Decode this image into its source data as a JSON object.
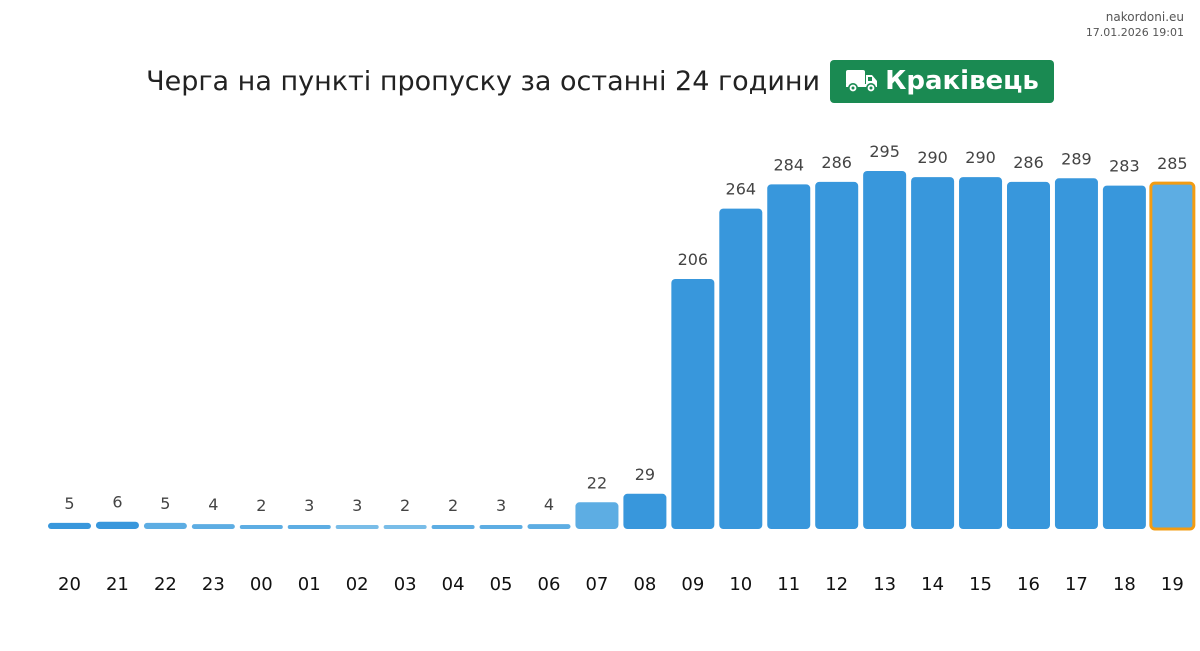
{
  "meta": {
    "site": "nakordoni.eu",
    "timestamp": "17.01.2026 19:01"
  },
  "header": {
    "title": "Черга на пункті пропуску за останні 24 години",
    "checkpoint": "Краківець",
    "checkpoint_icon": "truck-icon",
    "badge_color": "#1a8a52"
  },
  "colors": {
    "bar": "#3897dc",
    "bar_light": "#5dade3",
    "bar_lighter": "#79bde8",
    "highlight_border": "#f39c12",
    "value_label": "#444444",
    "tick_label": "#111111"
  },
  "chart_data": {
    "type": "bar",
    "title": "Черга на пункті пропуску за останні 24 години",
    "xlabel": "",
    "ylabel": "",
    "categories": [
      "20",
      "21",
      "22",
      "23",
      "00",
      "01",
      "02",
      "03",
      "04",
      "05",
      "06",
      "07",
      "08",
      "09",
      "10",
      "11",
      "12",
      "13",
      "14",
      "15",
      "16",
      "17",
      "18",
      "19"
    ],
    "values": [
      5,
      6,
      5,
      4,
      2,
      3,
      3,
      2,
      2,
      3,
      4,
      22,
      29,
      206,
      264,
      284,
      286,
      295,
      290,
      290,
      286,
      289,
      283,
      285
    ],
    "shade": [
      "base",
      "base",
      "light",
      "light",
      "light",
      "light",
      "lighter",
      "lighter",
      "light",
      "light",
      "light",
      "light",
      "base",
      "base",
      "base",
      "base",
      "base",
      "base",
      "base",
      "base",
      "base",
      "base",
      "base",
      "light"
    ],
    "highlight_index": 23,
    "ylim": [
      0,
      295
    ],
    "grid": false,
    "legend": "none",
    "data_labels": true
  }
}
